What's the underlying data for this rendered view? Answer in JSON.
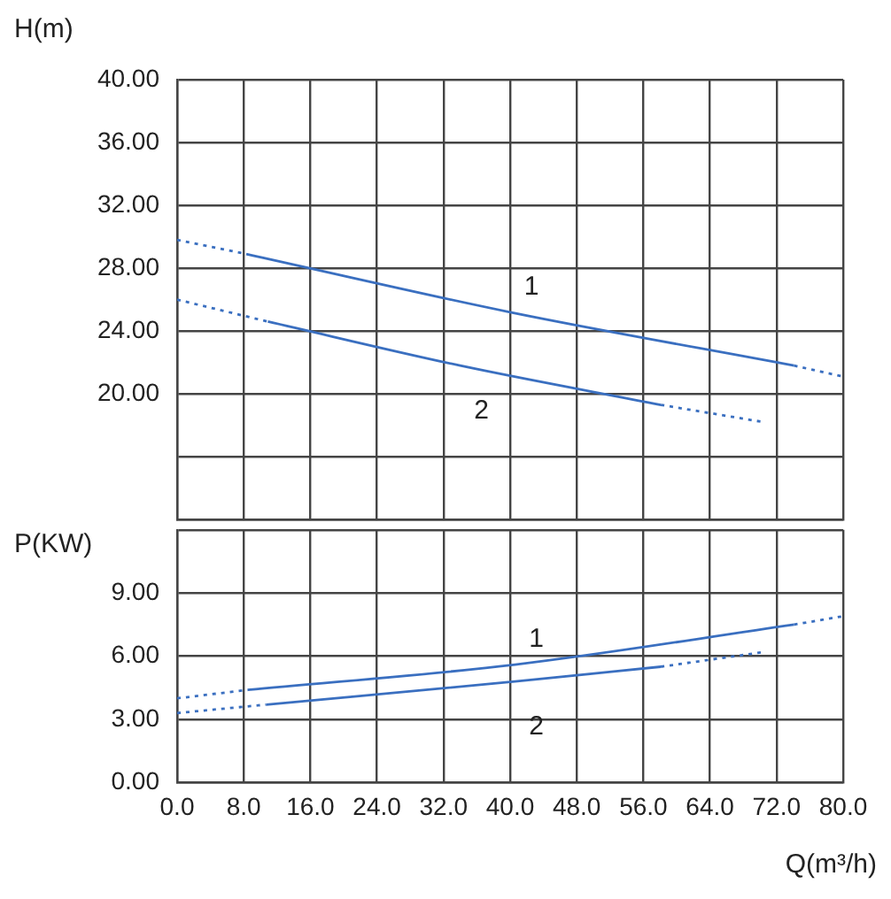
{
  "chart_data": [
    {
      "type": "line",
      "ylabel": "H(m)",
      "xlim": [
        0,
        80
      ],
      "ylim": [
        12,
        40
      ],
      "grid": true,
      "marker": "none",
      "tick_labels": "y",
      "xticks": [
        {
          "value": 0,
          "label": null
        },
        {
          "value": 8,
          "label": null
        },
        {
          "value": 16,
          "label": null
        },
        {
          "value": 24,
          "label": null
        },
        {
          "value": 32,
          "label": null
        },
        {
          "value": 40,
          "label": null
        },
        {
          "value": 48,
          "label": null
        },
        {
          "value": 56,
          "label": null
        },
        {
          "value": 64,
          "label": null
        },
        {
          "value": 72,
          "label": null
        },
        {
          "value": 80,
          "label": null
        }
      ],
      "yticks": [
        {
          "value": 12,
          "label": null
        },
        {
          "value": 16,
          "label": null
        },
        {
          "value": 20,
          "label": "20.00"
        },
        {
          "value": 24,
          "label": "24.00"
        },
        {
          "value": 28,
          "label": "28.00"
        },
        {
          "value": 32,
          "label": "32.00"
        },
        {
          "value": 36,
          "label": "36.00"
        },
        {
          "value": 40,
          "label": "40.00"
        }
      ],
      "series": [
        {
          "color": "#3a6fc0",
          "line_style": "dotted",
          "x": [
            0,
            8.3
          ],
          "values": [
            29.8,
            28.9
          ]
        },
        {
          "name": "1",
          "color": "#3a6fc0",
          "line_style": "solid",
          "x": [
            8.3,
            40,
            74.1
          ],
          "values": [
            28.9,
            25.2,
            21.8
          ]
        },
        {
          "color": "#3a6fc0",
          "line_style": "dotted",
          "x": [
            74.1,
            80
          ],
          "values": [
            21.8,
            21.1
          ]
        },
        {
          "color": "#3a6fc0",
          "line_style": "dotted",
          "x": [
            0,
            10.9
          ],
          "values": [
            26.0,
            24.6
          ]
        },
        {
          "name": "2",
          "color": "#3a6fc0",
          "line_style": "solid",
          "x": [
            10.9,
            34,
            58.1
          ],
          "values": [
            24.6,
            21.8,
            19.3
          ]
        },
        {
          "color": "#3a6fc0",
          "line_style": "dotted",
          "x": [
            58.1,
            70.5
          ],
          "values": [
            19.3,
            18.2
          ]
        }
      ]
    },
    {
      "type": "line",
      "ylabel": "P(KW)",
      "xlabel": "Q(m³/h)",
      "xlim": [
        0,
        80
      ],
      "ylim": [
        0,
        12
      ],
      "grid": true,
      "marker": "none",
      "xticks": [
        {
          "value": 0,
          "label": "0.0"
        },
        {
          "value": 8,
          "label": "8.0"
        },
        {
          "value": 16,
          "label": "16.0"
        },
        {
          "value": 24,
          "label": "24.0"
        },
        {
          "value": 32,
          "label": "32.0"
        },
        {
          "value": 40,
          "label": "40.0"
        },
        {
          "value": 48,
          "label": "48.0"
        },
        {
          "value": 56,
          "label": "56.0"
        },
        {
          "value": 64,
          "label": "64.0"
        },
        {
          "value": 72,
          "label": "72.0"
        },
        {
          "value": 80,
          "label": "80.0"
        }
      ],
      "yticks": [
        {
          "value": 0,
          "label": "0.00"
        },
        {
          "value": 3,
          "label": "3.00"
        },
        {
          "value": 6,
          "label": "6.00"
        },
        {
          "value": 9,
          "label": "9.00"
        },
        {
          "value": 12,
          "label": null
        }
      ],
      "series": [
        {
          "color": "#3a6fc0",
          "line_style": "dotted",
          "x": [
            0,
            8.5
          ],
          "values": [
            4.0,
            4.4
          ]
        },
        {
          "name": "1",
          "color": "#3a6fc0",
          "line_style": "solid",
          "x": [
            8.5,
            40.6,
            74.1
          ],
          "values": [
            4.4,
            5.6,
            7.5
          ]
        },
        {
          "color": "#3a6fc0",
          "line_style": "dotted",
          "x": [
            74.1,
            80
          ],
          "values": [
            7.5,
            7.9
          ]
        },
        {
          "color": "#3a6fc0",
          "line_style": "dotted",
          "x": [
            0,
            10.7
          ],
          "values": [
            3.3,
            3.7
          ]
        },
        {
          "name": "2",
          "color": "#3a6fc0",
          "line_style": "solid",
          "x": [
            10.7,
            40.6,
            58.1
          ],
          "values": [
            3.7,
            4.8,
            5.5
          ]
        },
        {
          "color": "#3a6fc0",
          "line_style": "dotted",
          "x": [
            58.1,
            70.5
          ],
          "values": [
            5.5,
            6.2
          ]
        }
      ]
    }
  ]
}
